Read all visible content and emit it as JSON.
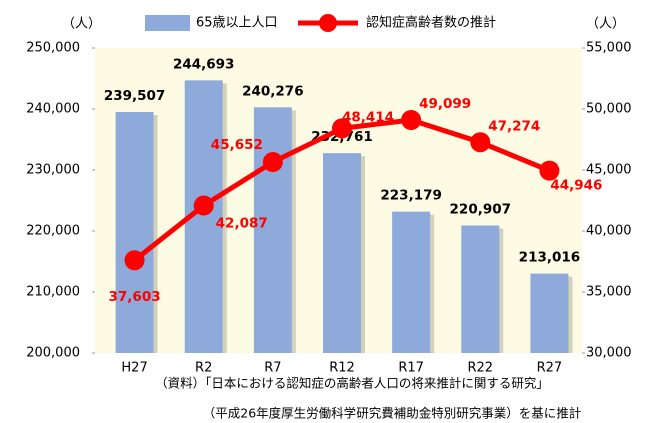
{
  "chart_data": {
    "type": "bar_line",
    "left_unit": "（人）",
    "right_unit": "（人）",
    "categories": [
      "H27",
      "R2",
      "R7",
      "R12",
      "R17",
      "R22",
      "R27"
    ],
    "series": [
      {
        "name": "65歳以上人口",
        "type": "bar",
        "color": "#8eaadb",
        "axis": "y",
        "values": [
          239507,
          244693,
          240276,
          232761,
          223179,
          220907,
          213016
        ],
        "value_labels": [
          "239,507",
          "244,693",
          "240,276",
          "232,761",
          "223,179",
          "220,907",
          "213,016"
        ]
      },
      {
        "name": "認知症高齢者数の推計",
        "type": "line",
        "color": "#ff0000",
        "axis": "y2",
        "values": [
          37603,
          42087,
          45652,
          48414,
          49099,
          47274,
          44946
        ],
        "value_labels": [
          "37,603",
          "42,087",
          "45,652",
          "48,414",
          "49,099",
          "47,274",
          "44,946"
        ]
      }
    ],
    "ylim": [
      200000,
      250000
    ],
    "yticks": [
      {
        "value": 200000,
        "label": "200,000"
      },
      {
        "value": 210000,
        "label": "210,000"
      },
      {
        "value": 220000,
        "label": "220,000"
      },
      {
        "value": 230000,
        "label": "230,000"
      },
      {
        "value": 240000,
        "label": "240,000"
      },
      {
        "value": 250000,
        "label": "250,000"
      }
    ],
    "y2lim": [
      30000,
      55000
    ],
    "y2ticks": [
      {
        "value": 30000,
        "label": "30,000"
      },
      {
        "value": 35000,
        "label": "35,000"
      },
      {
        "value": 40000,
        "label": "40,000"
      },
      {
        "value": 45000,
        "label": "45,000"
      },
      {
        "value": 50000,
        "label": "50,000"
      },
      {
        "value": 55000,
        "label": "55,000"
      }
    ],
    "notes": [
      "（資料）「日本における認知症の高齢者人口の将来推計に関する研究」",
      "（平成26年度厚生労働科学研究費補助金特別研究事業）を基に推計"
    ]
  }
}
